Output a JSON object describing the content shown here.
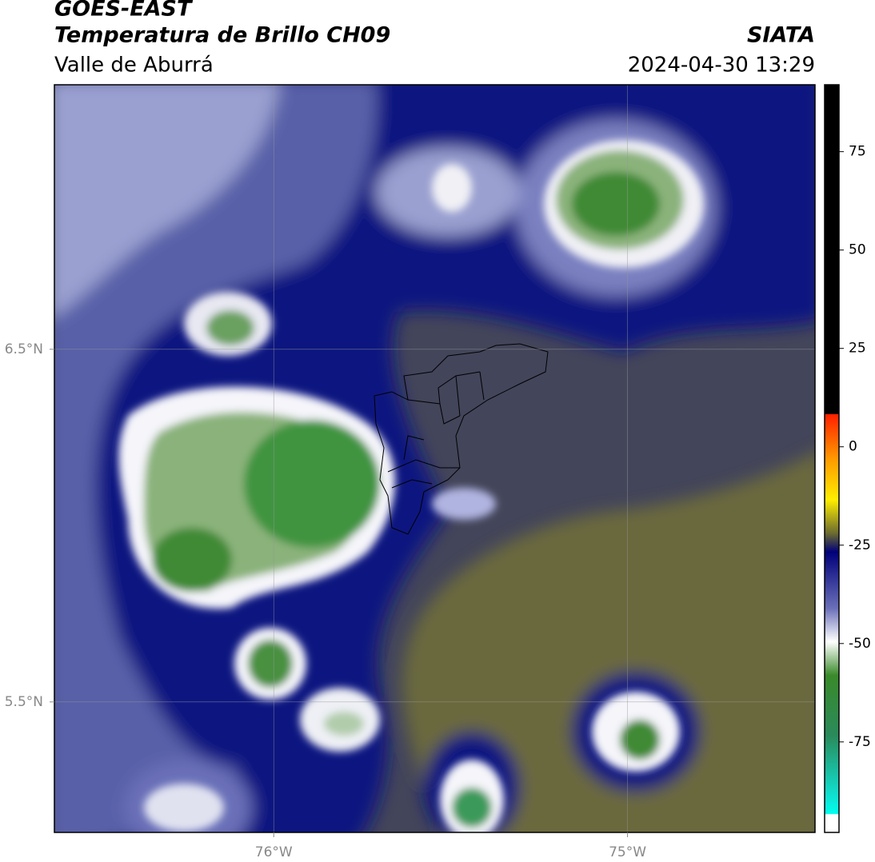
{
  "header": {
    "title": "GOES-EAST",
    "subtitle": "Temperatura de Brillo CH09",
    "region": "Valle de Aburrá",
    "source": "SIATA",
    "datetime": "2024-04-30 13:29"
  },
  "map": {
    "xlim": [
      -76.62,
      -74.47
    ],
    "ylim": [
      5.13,
      7.25
    ],
    "xticks": [
      {
        "value": -76,
        "label": "76°W"
      },
      {
        "value": -75,
        "label": "75°W"
      }
    ],
    "yticks": [
      {
        "value": 5.5,
        "label": "5.5°N"
      },
      {
        "value": 6.5,
        "label": "6.5°N"
      }
    ],
    "grid": true
  },
  "colorbar": {
    "lim": [
      -98,
      92
    ],
    "ticks": [
      75,
      50,
      25,
      0,
      -25,
      -50,
      -75
    ]
  }
}
